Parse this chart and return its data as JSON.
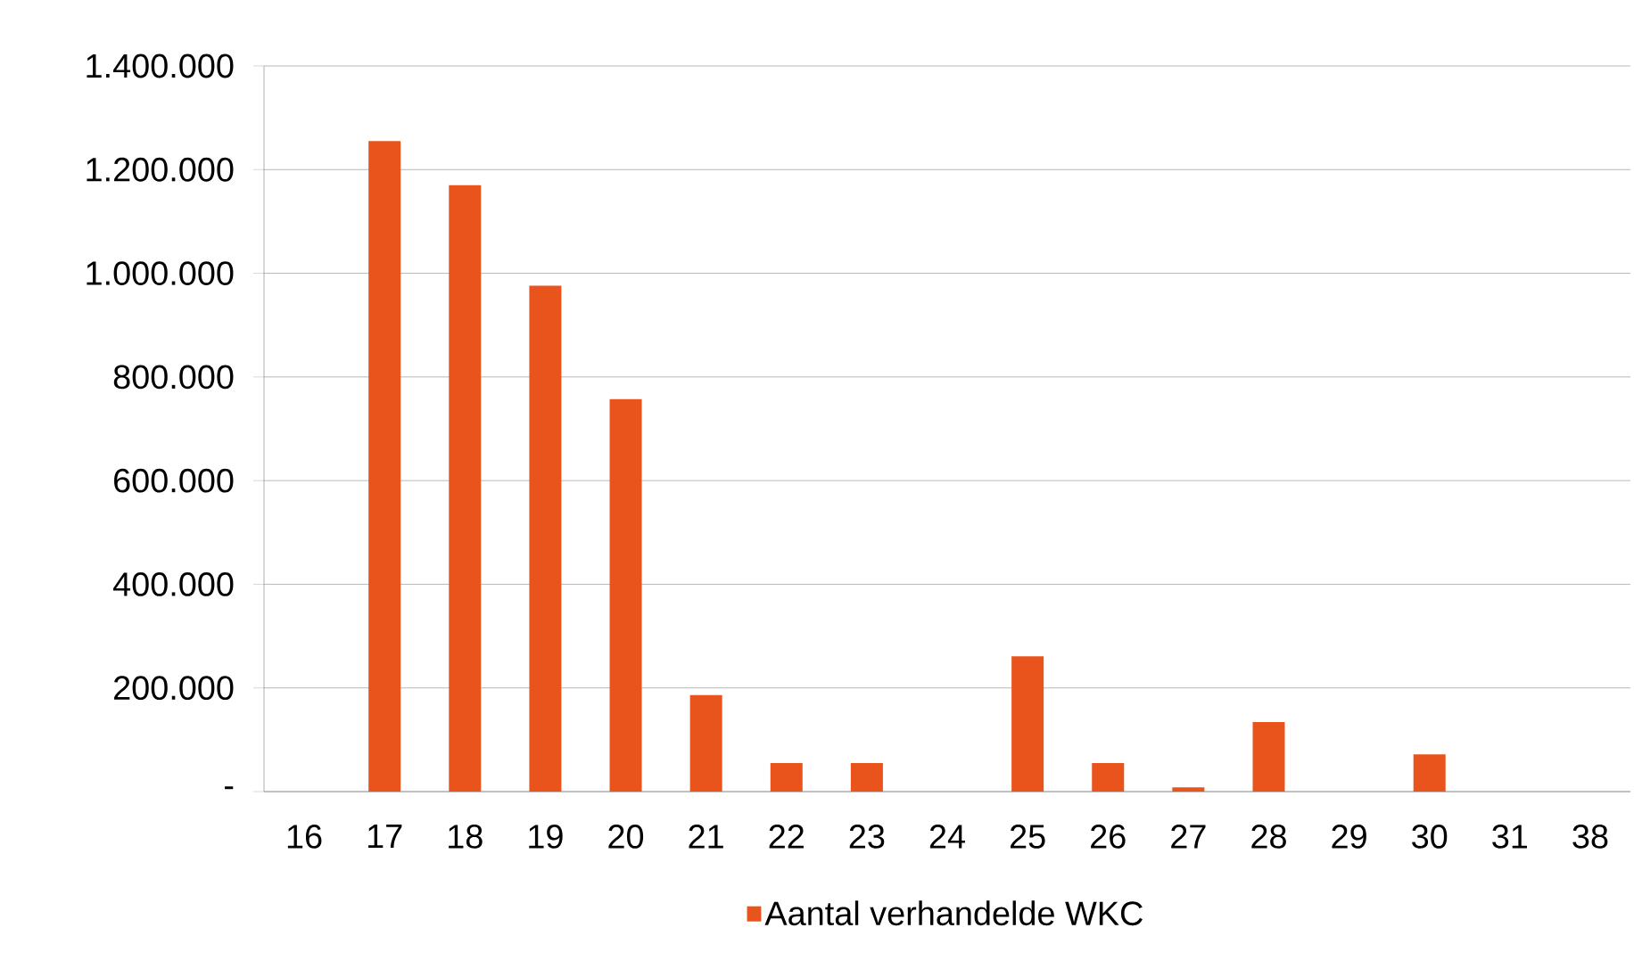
{
  "chart_data": {
    "type": "bar",
    "categories": [
      "16",
      "17",
      "18",
      "19",
      "20",
      "21",
      "22",
      "23",
      "24",
      "25",
      "26",
      "27",
      "28",
      "29",
      "30",
      "31",
      "38"
    ],
    "series": [
      {
        "name": "Aantal verhandelde WKC",
        "color": "#e8541c",
        "values": [
          0,
          1255000,
          1170000,
          976000,
          757000,
          186000,
          55000,
          55000,
          0,
          261000,
          55000,
          8000,
          134000,
          0,
          72000,
          0,
          0
        ]
      }
    ],
    "ylim": [
      0,
      1400000
    ],
    "yticks": [
      {
        "value": 0,
        "label": "-"
      },
      {
        "value": 200000,
        "label": "200.000"
      },
      {
        "value": 400000,
        "label": "400.000"
      },
      {
        "value": 600000,
        "label": "600.000"
      },
      {
        "value": 800000,
        "label": "800.000"
      },
      {
        "value": 1000000,
        "label": "1.000.000"
      },
      {
        "value": 1200000,
        "label": "1.200.000"
      },
      {
        "value": 1400000,
        "label": "1.400.000"
      }
    ],
    "grid": "y",
    "legend": "bottom"
  }
}
